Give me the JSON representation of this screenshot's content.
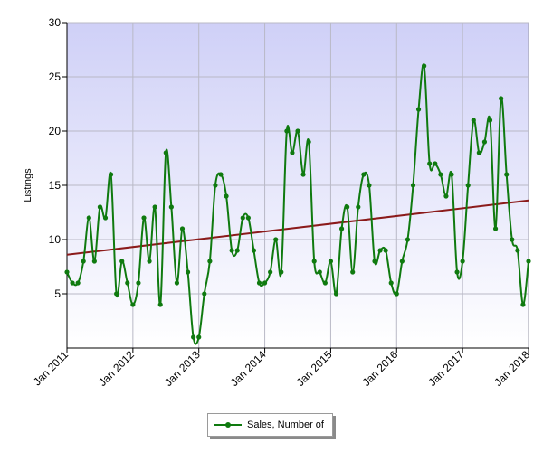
{
  "chart_data": {
    "type": "line",
    "title": "",
    "ylabel": "Listings",
    "xlabel": "",
    "ylim": [
      0,
      30
    ],
    "y_ticks": [
      "30",
      "25",
      "20",
      "15",
      "10",
      "5"
    ],
    "x_ticks": [
      "Jan 2011",
      "Jan 2012",
      "Jan 2013",
      "Jan 2014",
      "Jan 2015",
      "Jan 2016",
      "Jan 2017",
      "Jan 2018"
    ],
    "xlim": [
      0,
      84
    ],
    "grid": true,
    "legend_position": "bottom",
    "series": [
      {
        "name": "Sales, Number of",
        "color": "#0f7a0f",
        "marker": "circle",
        "values": [
          7,
          6,
          6,
          8,
          12,
          8,
          13,
          12,
          16,
          5,
          8,
          6,
          4,
          6,
          12,
          8,
          13,
          4,
          18,
          13,
          6,
          11,
          7,
          1,
          1,
          5,
          8,
          15,
          16,
          14,
          9,
          9,
          12,
          12,
          9,
          6,
          6,
          7,
          10,
          7,
          20,
          18,
          20,
          16,
          19,
          8,
          7,
          6,
          8,
          5,
          11,
          13,
          7,
          13,
          16,
          15,
          8,
          9,
          9,
          6,
          5,
          8,
          10,
          15,
          22,
          26,
          17,
          17,
          16,
          14,
          16,
          7,
          8,
          15,
          21,
          18,
          19,
          21,
          11,
          23,
          16,
          10,
          9,
          4,
          8
        ]
      }
    ],
    "trend_line": {
      "color": "#8b1a1a",
      "start": 8.6,
      "end": 13.6
    }
  },
  "legend": {
    "label": "Sales, Number of"
  }
}
